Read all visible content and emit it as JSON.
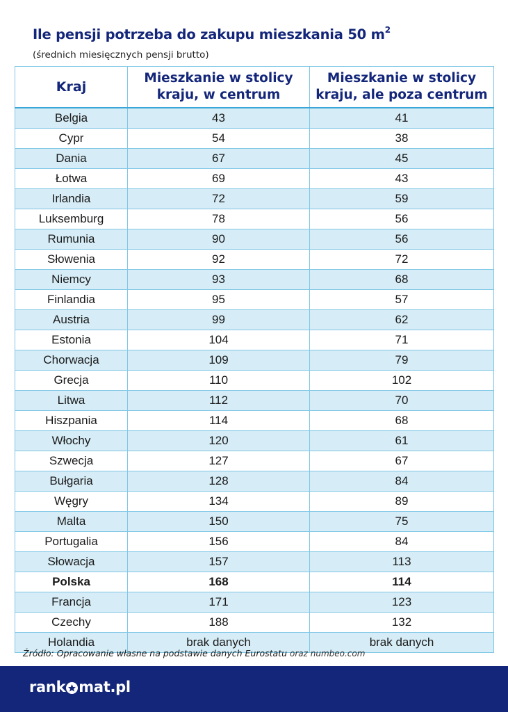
{
  "header": {
    "title": "Ile pensji potrzeba do zakupu mieszkania 50 m",
    "title_sup": "2",
    "subtitle": "(średnich miesięcznych pensji brutto)"
  },
  "chart_data": {
    "type": "table",
    "columns": [
      "Kraj",
      "Mieszkanie w stolicy kraju, w centrum",
      "Mieszkanie w stolicy kraju, ale poza centrum"
    ],
    "columns_lines": [
      [
        "Kraj"
      ],
      [
        "Mieszkanie w stolicy",
        "kraju, w centrum"
      ],
      [
        "Mieszkanie w stolicy",
        "kraju, ale poza centrum"
      ]
    ],
    "rows": [
      {
        "country": "Belgia",
        "center": "43",
        "outside": "41"
      },
      {
        "country": "Cypr",
        "center": "54",
        "outside": "38"
      },
      {
        "country": "Dania",
        "center": "67",
        "outside": "45"
      },
      {
        "country": "Łotwa",
        "center": "69",
        "outside": "43"
      },
      {
        "country": "Irlandia",
        "center": "72",
        "outside": "59"
      },
      {
        "country": "Luksemburg",
        "center": "78",
        "outside": "56"
      },
      {
        "country": "Rumunia",
        "center": "90",
        "outside": "56"
      },
      {
        "country": "Słowenia",
        "center": "92",
        "outside": "72"
      },
      {
        "country": "Niemcy",
        "center": "93",
        "outside": "68"
      },
      {
        "country": "Finlandia",
        "center": "95",
        "outside": "57"
      },
      {
        "country": "Austria",
        "center": "99",
        "outside": "62"
      },
      {
        "country": "Estonia",
        "center": "104",
        "outside": "71"
      },
      {
        "country": "Chorwacja",
        "center": "109",
        "outside": "79"
      },
      {
        "country": "Grecja",
        "center": "110",
        "outside": "102"
      },
      {
        "country": "Litwa",
        "center": "112",
        "outside": "70"
      },
      {
        "country": "Hiszpania",
        "center": "114",
        "outside": "68"
      },
      {
        "country": "Włochy",
        "center": "120",
        "outside": "61"
      },
      {
        "country": "Szwecja",
        "center": "127",
        "outside": "67"
      },
      {
        "country": "Bułgaria",
        "center": "128",
        "outside": "84"
      },
      {
        "country": "Węgry",
        "center": "134",
        "outside": "89"
      },
      {
        "country": "Malta",
        "center": "150",
        "outside": "75"
      },
      {
        "country": "Portugalia",
        "center": "156",
        "outside": "84"
      },
      {
        "country": "Słowacja",
        "center": "157",
        "outside": "113"
      },
      {
        "country": "Polska",
        "center": "168",
        "outside": "114",
        "highlight": true
      },
      {
        "country": "Francja",
        "center": "171",
        "outside": "123"
      },
      {
        "country": "Czechy",
        "center": "188",
        "outside": "132"
      },
      {
        "country": "Holandia",
        "center": "brak danych",
        "outside": "brak danych"
      }
    ]
  },
  "source": {
    "main": "Źródło: Opracowanie własne na podstawie danych Eurostatu",
    "tail": "oraz numbeo.com"
  },
  "footer": {
    "logo_left": "rank",
    "logo_right": "mat.pl"
  },
  "colors": {
    "brand_navy": "#13267a",
    "row_tint": "#d6ecf6",
    "grid": "#7fc7e6"
  }
}
